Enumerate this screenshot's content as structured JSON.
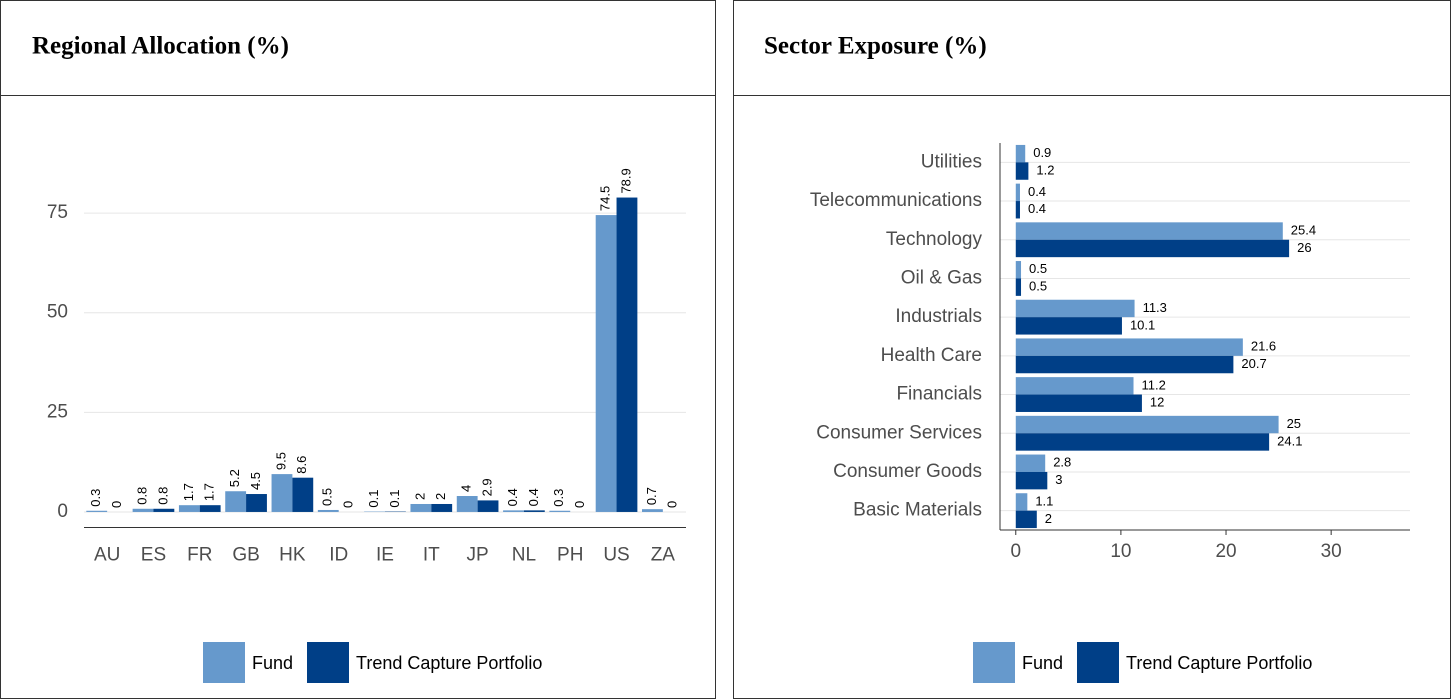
{
  "chart_data": [
    {
      "type": "bar",
      "title": "Regional Allocation (%)",
      "categories": [
        "AU",
        "ES",
        "FR",
        "GB",
        "HK",
        "ID",
        "IE",
        "IT",
        "JP",
        "NL",
        "PH",
        "US",
        "ZA"
      ],
      "series": [
        {
          "name": "Fund",
          "color": "#6699cc",
          "values": [
            0.3,
            0.8,
            1.7,
            5.2,
            9.5,
            0.5,
            0.1,
            2,
            4,
            0.4,
            0.3,
            74.5,
            0.7
          ]
        },
        {
          "name": "Trend Capture Portfolio",
          "color": "#003f87",
          "values": [
            0,
            0.8,
            1.7,
            4.5,
            8.6,
            0,
            0.1,
            2,
            2.9,
            0.4,
            0,
            78.9,
            0
          ]
        }
      ],
      "ylim": [
        -3.9,
        82.8
      ],
      "yticks": [
        0,
        25,
        50,
        75
      ],
      "grid": true,
      "legend": "bottom"
    },
    {
      "type": "hbar",
      "title": "Sector Exposure (%)",
      "categories": [
        "Utilities",
        "Telecommunications",
        "Technology",
        "Oil & Gas",
        "Industrials",
        "Health Care",
        "Financials",
        "Consumer Services",
        "Consumer Goods",
        "Basic Materials"
      ],
      "series": [
        {
          "name": "Fund",
          "color": "#6699cc",
          "values": [
            0.9,
            0.4,
            25.4,
            0.5,
            11.3,
            21.6,
            11.2,
            25,
            2.8,
            1.1
          ]
        },
        {
          "name": "Trend Capture Portfolio",
          "color": "#003f87",
          "values": [
            1.2,
            0.4,
            26,
            0.5,
            10.1,
            20.7,
            12,
            24.1,
            3,
            2
          ]
        }
      ],
      "xlim": [
        -1.5,
        37.5
      ],
      "xticks": [
        0,
        10,
        20,
        30
      ],
      "grid": true,
      "legend": "bottom"
    }
  ]
}
